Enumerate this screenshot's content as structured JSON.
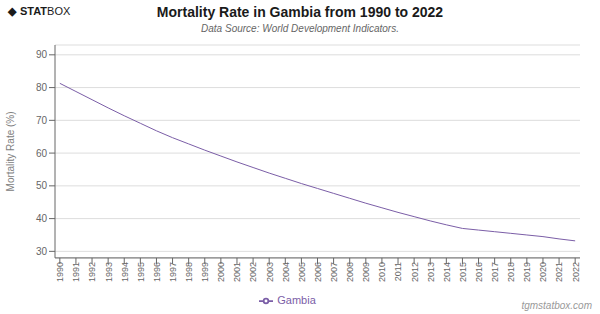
{
  "chart_data": {
    "type": "line",
    "title": "Mortality Rate in Gambia from 1990 to 2022",
    "subtitle": "Data Source: World Development Indicators.",
    "ylabel": "Mortality Rate (%)",
    "annotations": [
      "◆",
      "STAT",
      "BOX",
      "tgmstatbox.com"
    ],
    "x": [
      1990,
      1991,
      1992,
      1993,
      1994,
      1995,
      1996,
      1997,
      1998,
      1999,
      2000,
      2001,
      2002,
      2003,
      2004,
      2005,
      2006,
      2007,
      2008,
      2009,
      2010,
      2011,
      2012,
      2013,
      2014,
      2015,
      2016,
      2017,
      2018,
      2019,
      2020,
      2021,
      2022
    ],
    "series": [
      {
        "name": "Gambia",
        "color": "#7B5EA7",
        "values": [
          81.3,
          78.8,
          76.3,
          73.8,
          71.4,
          69.1,
          66.8,
          64.7,
          62.8,
          60.9,
          59.1,
          57.3,
          55.6,
          53.9,
          52.3,
          50.7,
          49.2,
          47.7,
          46.2,
          44.7,
          43.3,
          41.9,
          40.6,
          39.3,
          38.1,
          37.0,
          36.5,
          36.0,
          35.5,
          35.0,
          34.5,
          33.8,
          33.2
        ]
      }
    ],
    "xlim": [
      1989.7,
      2022.3
    ],
    "xticks": [
      1990,
      1991,
      1992,
      1993,
      1994,
      1995,
      1996,
      1997,
      1998,
      1999,
      2000,
      2001,
      2002,
      2003,
      2004,
      2005,
      2006,
      2007,
      2008,
      2009,
      2010,
      2011,
      2012,
      2013,
      2014,
      2015,
      2016,
      2017,
      2018,
      2019,
      2020,
      2021,
      2022
    ],
    "ylim": [
      28,
      93
    ],
    "yticks": [
      30,
      40,
      50,
      60,
      70,
      80,
      90
    ],
    "grid": true,
    "legend": "bottom"
  }
}
